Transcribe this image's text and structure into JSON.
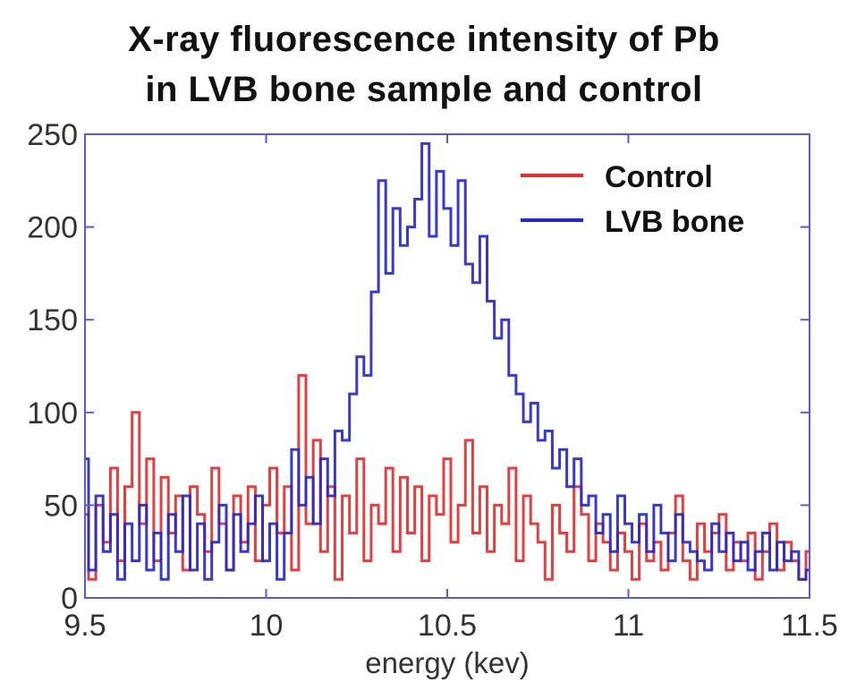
{
  "chart_data": {
    "type": "line",
    "title_lines": [
      "X-ray fluorescence intensity of Pb",
      "in LVB bone sample and control"
    ],
    "xlabel": "energy (kev)",
    "ylabel": "",
    "xlim": [
      9.5,
      11.5
    ],
    "ylim": [
      0,
      250
    ],
    "x_ticks": [
      {
        "value": 9.5,
        "label": "9.5"
      },
      {
        "value": 10,
        "label": "10"
      },
      {
        "value": 10.5,
        "label": "10.5"
      },
      {
        "value": 11,
        "label": "11"
      },
      {
        "value": 11.5,
        "label": "11.5"
      }
    ],
    "y_ticks": [
      {
        "value": 0,
        "label": "0"
      },
      {
        "value": 50,
        "label": "50"
      },
      {
        "value": 100,
        "label": "100"
      },
      {
        "value": 150,
        "label": "150"
      },
      {
        "value": 200,
        "label": "200"
      },
      {
        "value": 250,
        "label": "250"
      }
    ],
    "grid": false,
    "legend_position": "top-right",
    "frame_color": "#5a5ad8",
    "series": [
      {
        "name": "Control",
        "color": "#e03030",
        "x": [
          9.5,
          9.52,
          9.54,
          9.56,
          9.58,
          9.6,
          9.62,
          9.64,
          9.66,
          9.68,
          9.7,
          9.72,
          9.74,
          9.76,
          9.78,
          9.8,
          9.82,
          9.84,
          9.86,
          9.88,
          9.9,
          9.92,
          9.94,
          9.96,
          9.98,
          10.0,
          10.02,
          10.04,
          10.06,
          10.08,
          10.1,
          10.12,
          10.14,
          10.16,
          10.18,
          10.2,
          10.22,
          10.24,
          10.26,
          10.28,
          10.3,
          10.32,
          10.34,
          10.36,
          10.38,
          10.4,
          10.42,
          10.44,
          10.46,
          10.48,
          10.5,
          10.52,
          10.54,
          10.56,
          10.58,
          10.6,
          10.62,
          10.64,
          10.66,
          10.68,
          10.7,
          10.72,
          10.74,
          10.76,
          10.78,
          10.8,
          10.82,
          10.84,
          10.86,
          10.88,
          10.9,
          10.92,
          10.94,
          10.96,
          10.98,
          11.0,
          11.02,
          11.04,
          11.06,
          11.08,
          11.1,
          11.12,
          11.14,
          11.16,
          11.18,
          11.2,
          11.22,
          11.24,
          11.26,
          11.28,
          11.3,
          11.32,
          11.34,
          11.36,
          11.38,
          11.4,
          11.42,
          11.44,
          11.46,
          11.48,
          11.5
        ],
        "values": [
          45,
          10,
          50,
          30,
          70,
          20,
          60,
          100,
          40,
          75,
          20,
          65,
          35,
          55,
          15,
          60,
          45,
          25,
          70,
          40,
          15,
          55,
          30,
          60,
          20,
          50,
          70,
          35,
          60,
          15,
          120,
          40,
          85,
          25,
          60,
          10,
          55,
          35,
          75,
          20,
          50,
          40,
          70,
          25,
          65,
          35,
          60,
          20,
          55,
          45,
          75,
          30,
          50,
          85,
          35,
          60,
          25,
          50,
          40,
          70,
          20,
          55,
          40,
          30,
          10,
          50,
          35,
          25,
          60,
          45,
          20,
          40,
          30,
          15,
          35,
          25,
          10,
          40,
          20,
          30,
          15,
          35,
          55,
          20,
          10,
          40,
          25,
          35,
          45,
          15,
          30,
          20,
          35,
          10,
          25,
          40,
          15,
          30,
          20,
          10,
          25
        ]
      },
      {
        "name": "LVB bone",
        "color": "#2828c8",
        "x": [
          9.5,
          9.52,
          9.54,
          9.56,
          9.58,
          9.6,
          9.62,
          9.64,
          9.66,
          9.68,
          9.7,
          9.72,
          9.74,
          9.76,
          9.78,
          9.8,
          9.82,
          9.84,
          9.86,
          9.88,
          9.9,
          9.92,
          9.94,
          9.96,
          9.98,
          10.0,
          10.02,
          10.04,
          10.06,
          10.08,
          10.1,
          10.12,
          10.14,
          10.16,
          10.18,
          10.2,
          10.22,
          10.24,
          10.26,
          10.28,
          10.3,
          10.32,
          10.34,
          10.36,
          10.38,
          10.4,
          10.42,
          10.44,
          10.46,
          10.48,
          10.5,
          10.52,
          10.54,
          10.56,
          10.58,
          10.6,
          10.62,
          10.64,
          10.66,
          10.68,
          10.7,
          10.72,
          10.74,
          10.76,
          10.78,
          10.8,
          10.82,
          10.84,
          10.86,
          10.88,
          10.9,
          10.92,
          10.94,
          10.96,
          10.98,
          11.0,
          11.02,
          11.04,
          11.06,
          11.08,
          11.1,
          11.12,
          11.14,
          11.16,
          11.18,
          11.2,
          11.22,
          11.24,
          11.26,
          11.28,
          11.3,
          11.32,
          11.34,
          11.36,
          11.38,
          11.4,
          11.42,
          11.44,
          11.46,
          11.48,
          11.5
        ],
        "values": [
          75,
          15,
          55,
          25,
          45,
          10,
          40,
          20,
          50,
          15,
          35,
          10,
          45,
          25,
          55,
          15,
          40,
          10,
          30,
          50,
          15,
          45,
          25,
          40,
          55,
          20,
          40,
          10,
          35,
          80,
          50,
          65,
          40,
          75,
          55,
          90,
          85,
          110,
          130,
          120,
          165,
          225,
          175,
          210,
          190,
          200,
          215,
          245,
          195,
          230,
          210,
          190,
          225,
          180,
          170,
          195,
          160,
          140,
          150,
          120,
          110,
          95,
          105,
          85,
          90,
          70,
          80,
          60,
          75,
          50,
          55,
          35,
          45,
          25,
          55,
          40,
          30,
          45,
          25,
          50,
          35,
          20,
          45,
          30,
          25,
          20,
          15,
          40,
          25,
          35,
          20,
          30,
          15,
          25,
          35,
          15,
          30,
          20,
          25,
          10,
          15
        ]
      }
    ]
  }
}
